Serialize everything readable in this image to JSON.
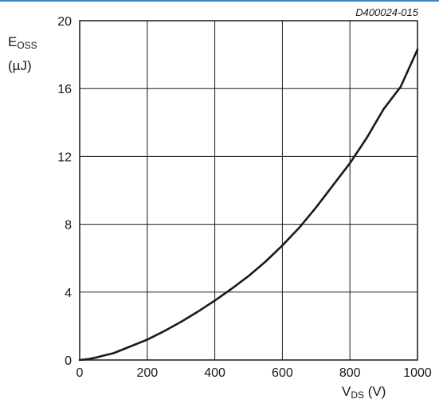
{
  "figure_id": "D400024-015",
  "y_axis": {
    "symbol": "E",
    "subscript": "OSS",
    "unit": "(µJ)"
  },
  "x_axis": {
    "symbol": "V",
    "subscript": "DS",
    "unit": "(V)"
  },
  "chart_data": {
    "type": "line",
    "title": "",
    "xlabel": "VDS (V)",
    "ylabel": "EOSS (µJ)",
    "xlim": [
      0,
      1000
    ],
    "ylim": [
      0,
      20
    ],
    "x_ticks": [
      0,
      200,
      400,
      600,
      800,
      1000
    ],
    "y_ticks": [
      0,
      4,
      8,
      12,
      16,
      20
    ],
    "grid": true,
    "line_color": "#1a1a1a",
    "series": [
      {
        "x": [
          0,
          25,
          50,
          75,
          100,
          150,
          200,
          250,
          300,
          350,
          400,
          450,
          500,
          550,
          600,
          650,
          700,
          750,
          800,
          850,
          900,
          950,
          1000
        ],
        "y": [
          0,
          0.05,
          0.15,
          0.28,
          0.4,
          0.8,
          1.2,
          1.7,
          2.25,
          2.85,
          3.5,
          4.2,
          4.95,
          5.8,
          6.75,
          7.8,
          9.0,
          10.3,
          11.6,
          13.1,
          14.8,
          16.1,
          18.3
        ]
      }
    ]
  }
}
